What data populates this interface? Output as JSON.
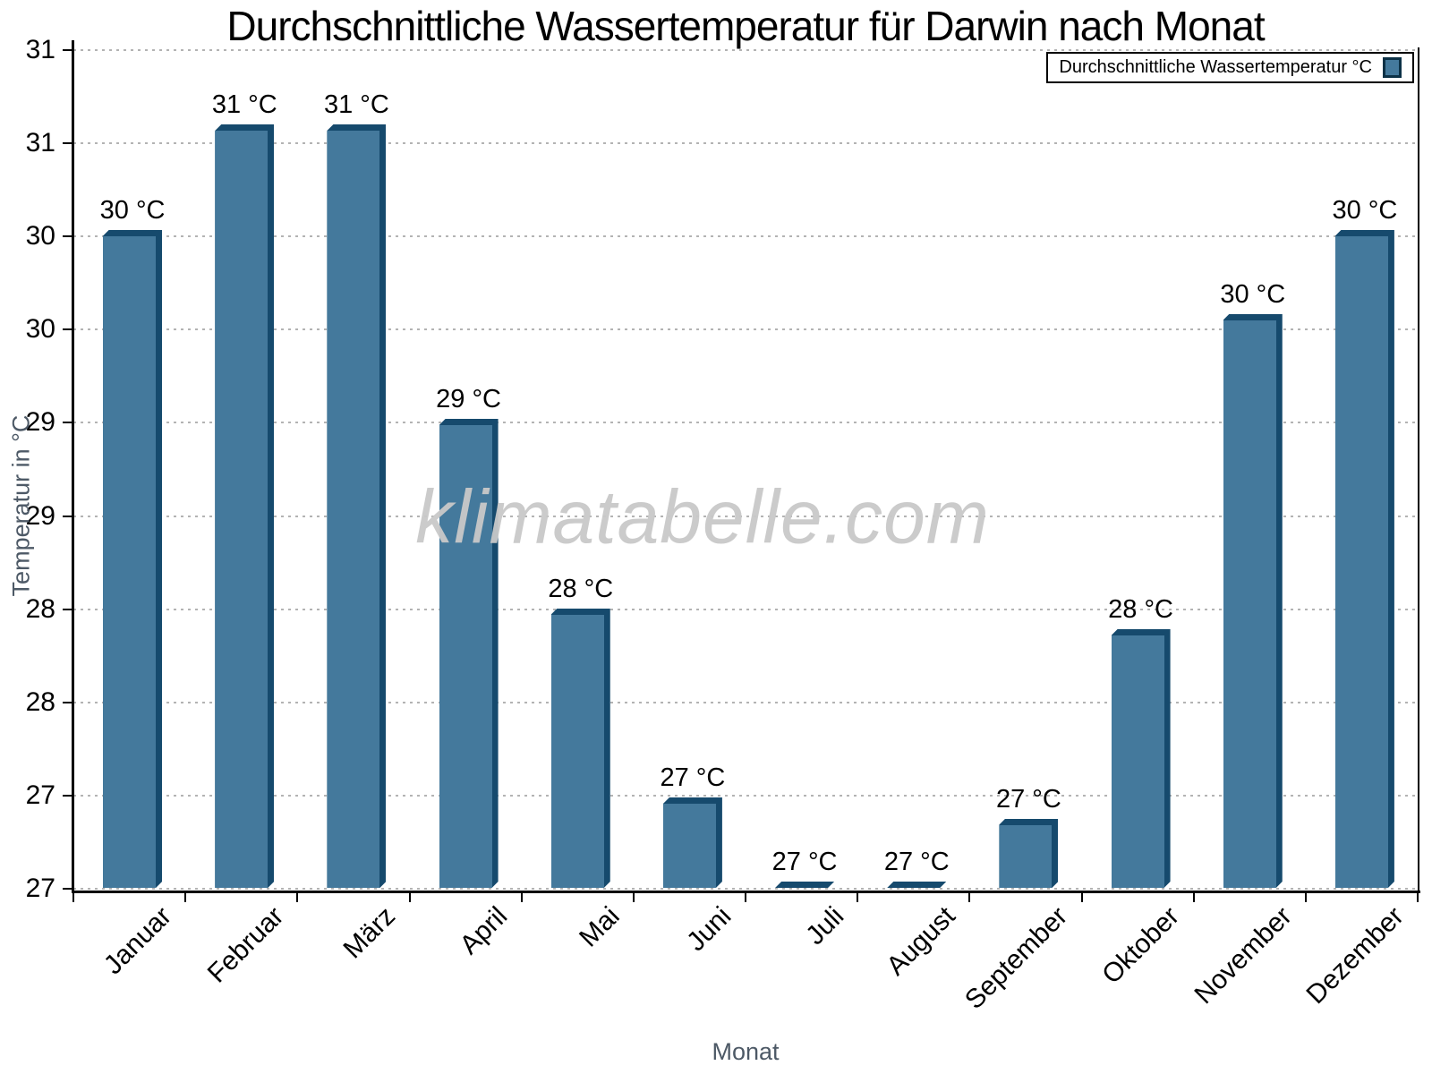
{
  "title": "Durchschnittliche Wassertemperatur für Darwin nach Monat",
  "watermark": "klimatabelle.com",
  "legend": {
    "label": "Durchschnittliche Wassertemperatur °C"
  },
  "axis_titles": {
    "x": "Monat",
    "y": "Temperatur in °C"
  },
  "chart_data": {
    "type": "bar",
    "title": "Durchschnittliche Wassertemperatur für Darwin nach Monat",
    "xlabel": "Monat",
    "ylabel": "Temperatur in °C",
    "categories": [
      "Januar",
      "Februar",
      "März",
      "April",
      "Mai",
      "Juni",
      "Juli",
      "August",
      "September",
      "Oktober",
      "November",
      "Dezember"
    ],
    "values": [
      30.1,
      30.6,
      30.6,
      29.2,
      28.3,
      27.4,
      27.0,
      27.0,
      27.3,
      28.2,
      29.7,
      30.1
    ],
    "bar_labels": [
      "30 °C",
      "31 °C",
      "31 °C",
      "29 °C",
      "28 °C",
      "27 °C",
      "27 °C",
      "27 °C",
      "27 °C",
      "28 °C",
      "30 °C",
      "30 °C"
    ],
    "series_name": "Durchschnittliche Wassertemperatur °C",
    "ylim": [
      27,
      31
    ],
    "ytick_count": 10,
    "ytick_labels": [
      "31",
      "31",
      "30",
      "30",
      "29",
      "29",
      "28",
      "28",
      "27",
      "27"
    ],
    "grid": "horizontal-dotted",
    "legend_position": "top-right",
    "colors": {
      "bar_face": "#44799c",
      "bar_edge": "#164a6d",
      "gridline": "#b3b3b3",
      "axis": "#000000",
      "axis_title_text": "#4d5966",
      "watermark_text": "#c9c9c9"
    }
  }
}
